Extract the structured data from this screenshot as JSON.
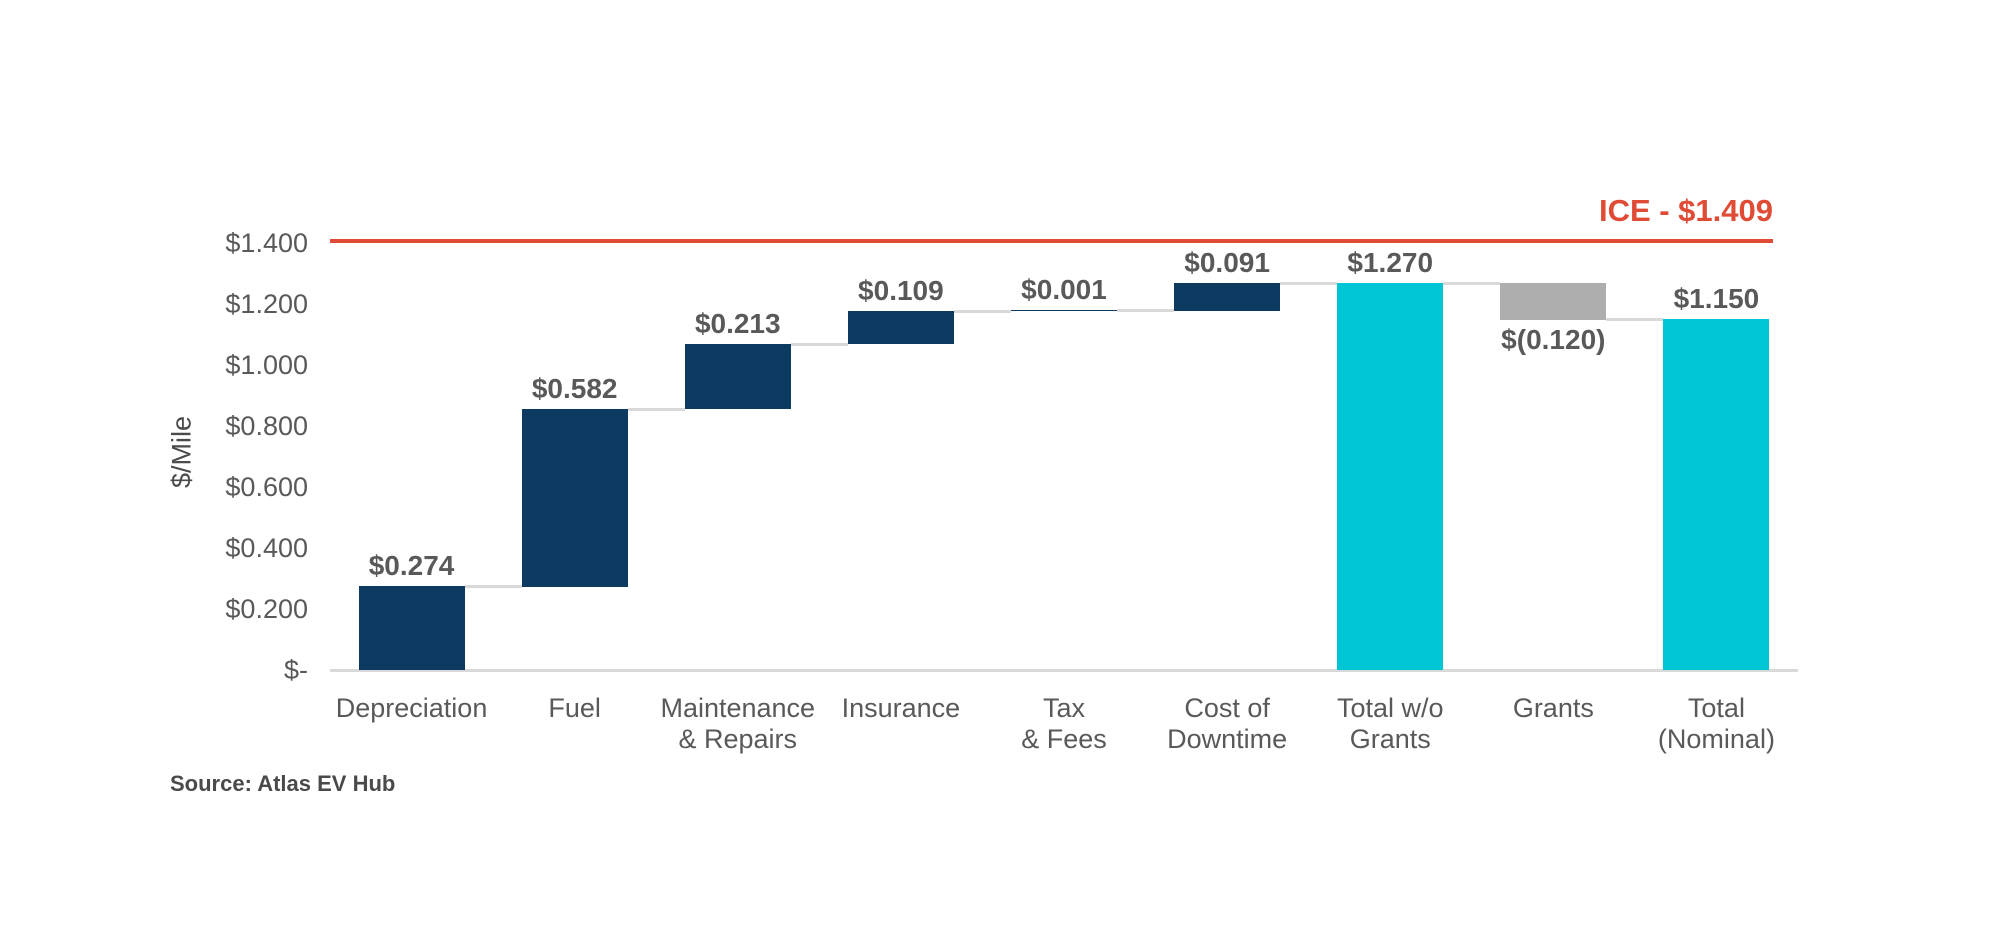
{
  "chart_data": {
    "type": "waterfall",
    "title": "",
    "ylabel": "$/Mile",
    "ylim": [
      0,
      1.4
    ],
    "ytick_step": 0.2,
    "grid": "off",
    "legend": "none",
    "yticks": [
      {
        "value": 0.0,
        "label": "$-"
      },
      {
        "value": 0.2,
        "label": "$0.200"
      },
      {
        "value": 0.4,
        "label": "$0.400"
      },
      {
        "value": 0.6,
        "label": "$0.600"
      },
      {
        "value": 0.8,
        "label": "$0.800"
      },
      {
        "value": 1.0,
        "label": "$1.000"
      },
      {
        "value": 1.2,
        "label": "$1.200"
      },
      {
        "value": 1.4,
        "label": "$1.400"
      }
    ],
    "categories": [
      "Depreciation",
      "Fuel",
      "Maintenance & Repairs",
      "Insurance",
      "Tax & Fees",
      "Cost of Downtime",
      "Total w/o Grants",
      "Grants",
      "Total (Nominal)"
    ],
    "bars": [
      {
        "category": "Depreciation",
        "lines": [
          "Depreciation"
        ],
        "value": 0.274,
        "display": "$0.274",
        "start": 0.0,
        "end": 0.274,
        "color": "navy",
        "label_side": "above"
      },
      {
        "category": "Fuel",
        "lines": [
          "Fuel"
        ],
        "value": 0.582,
        "display": "$0.582",
        "start": 0.274,
        "end": 0.856,
        "color": "navy",
        "label_side": "above"
      },
      {
        "category": "Maintenance & Repairs",
        "lines": [
          "Maintenance",
          "& Repairs"
        ],
        "value": 0.213,
        "display": "$0.213",
        "start": 0.856,
        "end": 1.069,
        "color": "navy",
        "label_side": "above"
      },
      {
        "category": "Insurance",
        "lines": [
          "Insurance"
        ],
        "value": 0.109,
        "display": "$0.109",
        "start": 1.069,
        "end": 1.178,
        "color": "navy",
        "label_side": "above"
      },
      {
        "category": "Tax & Fees",
        "lines": [
          "Tax",
          "& Fees"
        ],
        "value": 0.001,
        "display": "$0.001",
        "start": 1.178,
        "end": 1.179,
        "color": "navy",
        "label_side": "above"
      },
      {
        "category": "Cost of Downtime",
        "lines": [
          "Cost of",
          "Downtime"
        ],
        "value": 0.091,
        "display": "$0.091",
        "start": 1.179,
        "end": 1.27,
        "color": "navy",
        "label_side": "above"
      },
      {
        "category": "Total w/o Grants",
        "lines": [
          "Total w/o",
          "Grants"
        ],
        "value": 1.27,
        "display": "$1.270",
        "start": 0.0,
        "end": 1.27,
        "color": "cyan",
        "label_side": "above"
      },
      {
        "category": "Grants",
        "lines": [
          "Grants"
        ],
        "value": -0.12,
        "display": "$(0.120)",
        "start": 1.27,
        "end": 1.15,
        "color": "gray",
        "label_side": "below"
      },
      {
        "category": "Total (Nominal)",
        "lines": [
          "Total",
          "(Nominal)"
        ],
        "value": 1.15,
        "display": "$1.150",
        "start": 0.0,
        "end": 1.15,
        "color": "cyan",
        "label_side": "above"
      }
    ],
    "reference_line": {
      "label": "ICE - $1.409",
      "value": 1.409
    }
  },
  "colors": {
    "navy": "#0d3a60",
    "cyan": "#00c5d4",
    "gray": "#aeaeae",
    "reference_red": "#e04b35",
    "axis_gray": "#d9d9d9",
    "label_text": "#595959",
    "source_text": "#4a4a4a"
  },
  "source": {
    "label": "Source: Atlas EV Hub"
  }
}
